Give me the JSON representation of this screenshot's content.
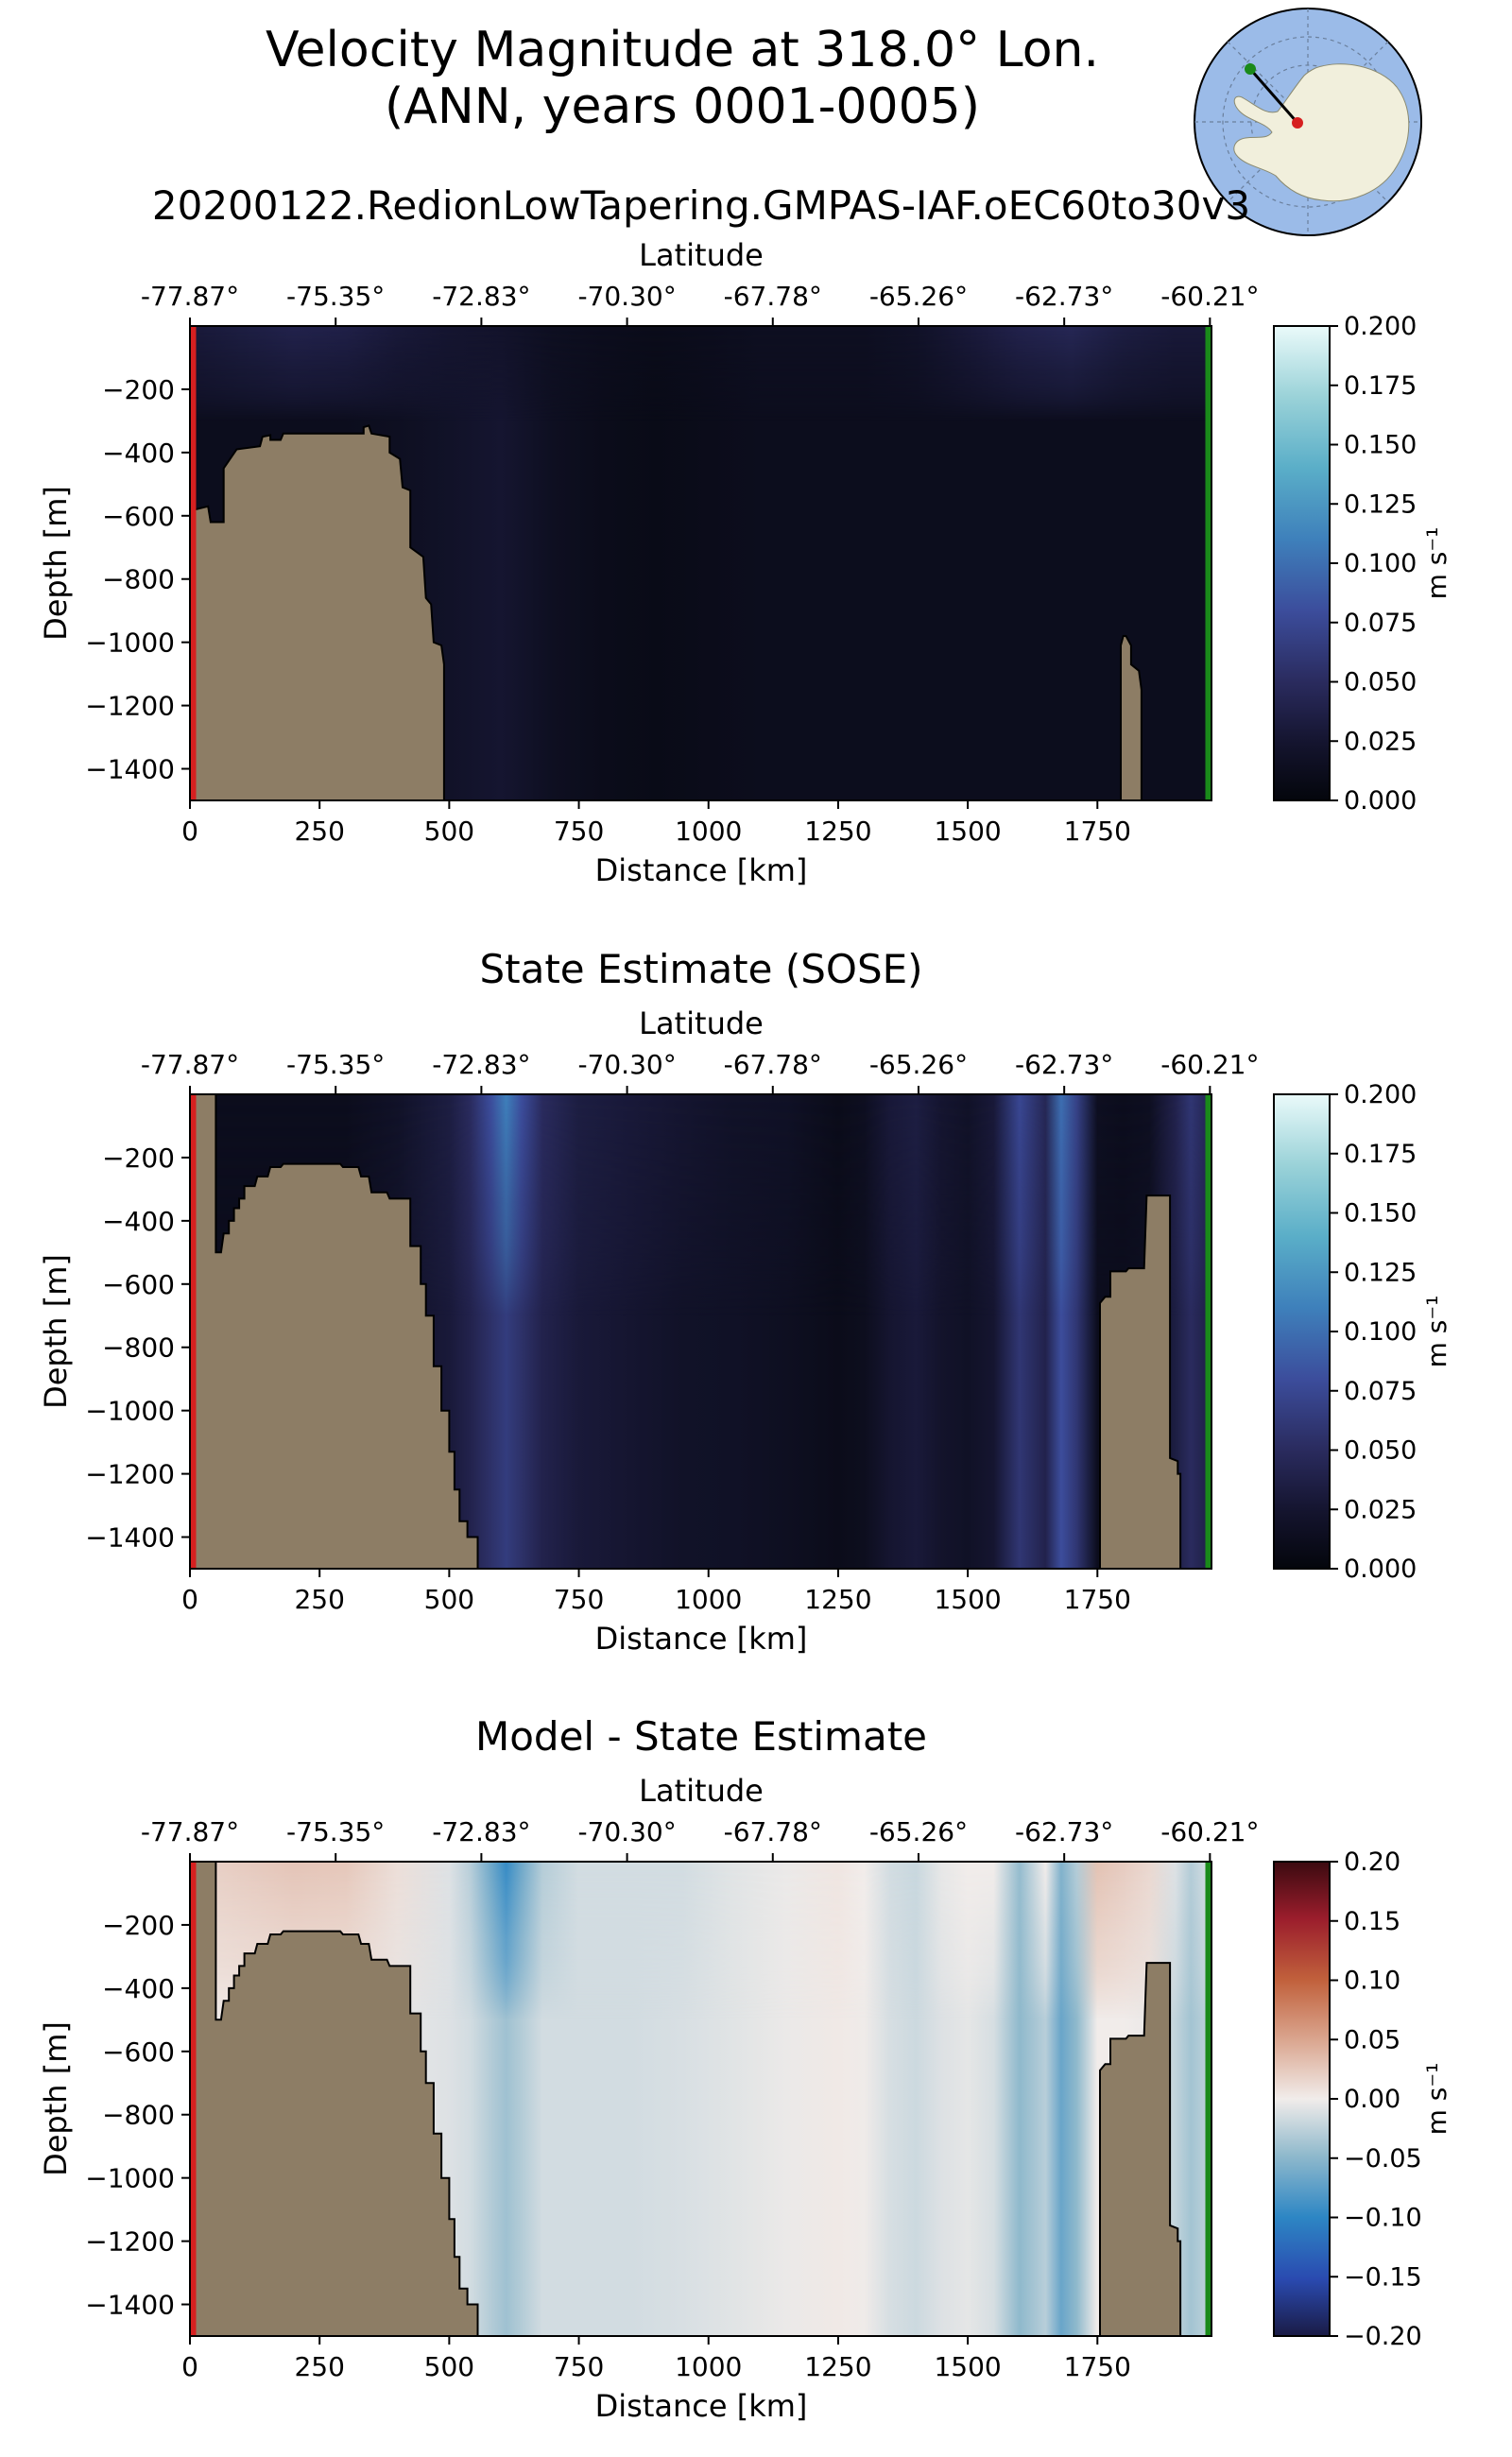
{
  "figure": {
    "title_line1": "Velocity Magnitude at 318.0° Lon.",
    "title_line2": "(ANN, years 0001-0005)"
  },
  "colors": {
    "land": "#8d7d65",
    "left_marker": "#d62020",
    "right_marker": "#1a8a1a",
    "inset_ocean": "#9bbbe8",
    "inset_land": "#f1efdc"
  },
  "inset": {
    "icon": "antarctica-map-icon"
  },
  "chart_data": [
    {
      "type": "heatmap",
      "panel_id": "model",
      "title": "20200122.RedionLowTapering.GMPAS-IAF.oEC60to30v3",
      "xlabel": "Distance [km]",
      "x_top_label": "Latitude",
      "ylabel": "Depth [m]",
      "xlim": [
        0,
        1970
      ],
      "ylim": [
        -1500,
        0
      ],
      "x_ticks": [
        0,
        250,
        500,
        750,
        1000,
        1250,
        1500,
        1750
      ],
      "x_tick_labels": [
        "0",
        "250",
        "500",
        "750",
        "1000",
        "1250",
        "1500",
        "1750"
      ],
      "y_ticks": [
        -200,
        -400,
        -600,
        -800,
        -1000,
        -1200,
        -1400
      ],
      "y_tick_labels": [
        "−200",
        "−400",
        "−600",
        "−800",
        "−1000",
        "−1200",
        "−1400"
      ],
      "top_ticks": [
        0,
        281,
        562,
        843,
        1124,
        1405,
        1686,
        1967
      ],
      "top_tick_labels": [
        "-77.87°",
        "-75.35°",
        "-72.83°",
        "-70.30°",
        "-67.78°",
        "-65.26°",
        "-62.73°",
        "-60.21°"
      ],
      "colorbar": {
        "label": "m s⁻¹",
        "range": [
          0,
          0.2
        ],
        "ticks": [
          0,
          0.025,
          0.05,
          0.075,
          0.1,
          0.125,
          0.15,
          0.175,
          0.2
        ],
        "tick_labels": [
          "0.000",
          "0.025",
          "0.050",
          "0.075",
          "0.100",
          "0.125",
          "0.150",
          "0.175",
          "0.200"
        ],
        "colormap": "ice"
      },
      "field": {
        "x": [
          0,
          100,
          200,
          300,
          400,
          500,
          600,
          700,
          800,
          900,
          1000,
          1100,
          1200,
          1300,
          1400,
          1500,
          1600,
          1700,
          1800,
          1900,
          1970
        ],
        "surface": [
          0.03,
          0.035,
          0.04,
          0.038,
          0.03,
          0.025,
          0.022,
          0.015,
          0.012,
          0.01,
          0.012,
          0.015,
          0.015,
          0.015,
          0.02,
          0.03,
          0.04,
          0.045,
          0.035,
          0.03,
          0.03
        ],
        "deep": [
          0.012,
          0.012,
          0.012,
          0.012,
          0.015,
          0.02,
          0.025,
          0.015,
          0.01,
          0.008,
          0.01,
          0.012,
          0.012,
          0.012,
          0.012,
          0.012,
          0.012,
          0.012,
          0.012,
          0.012,
          0.012
        ],
        "decay_depth": 300
      },
      "land": [
        {
          "x": [
            0,
            0,
            10,
            10,
            35,
            40,
            65,
            65,
            90,
            135,
            140,
            155,
            155,
            175,
            180,
            335,
            335,
            345,
            350,
            385,
            385,
            405,
            410,
            425,
            425,
            450,
            455,
            465,
            470,
            485,
            490,
            490
          ],
          "depth": [
            -1500,
            -680,
            -680,
            -580,
            -570,
            -620,
            -620,
            -450,
            -390,
            -380,
            -350,
            -345,
            -360,
            -360,
            -340,
            -340,
            -320,
            -315,
            -340,
            -350,
            -400,
            -420,
            -510,
            -520,
            -700,
            -730,
            -860,
            -880,
            -1000,
            -1010,
            -1070,
            -1500
          ]
        },
        {
          "x": [
            1795,
            1795,
            1800,
            1805,
            1815,
            1815,
            1830,
            1835,
            1835
          ],
          "depth": [
            -1500,
            -1010,
            -980,
            -980,
            -1010,
            -1070,
            -1090,
            -1150,
            -1500
          ]
        }
      ]
    },
    {
      "type": "heatmap",
      "panel_id": "sose",
      "title": "State Estimate (SOSE)",
      "xlabel": "Distance [km]",
      "x_top_label": "Latitude",
      "ylabel": "Depth [m]",
      "xlim": [
        0,
        1970
      ],
      "ylim": [
        -1500,
        0
      ],
      "x_ticks": [
        0,
        250,
        500,
        750,
        1000,
        1250,
        1500,
        1750
      ],
      "x_tick_labels": [
        "0",
        "250",
        "500",
        "750",
        "1000",
        "1250",
        "1500",
        "1750"
      ],
      "y_ticks": [
        -200,
        -400,
        -600,
        -800,
        -1000,
        -1200,
        -1400
      ],
      "y_tick_labels": [
        "−200",
        "−400",
        "−600",
        "−800",
        "−1000",
        "−1200",
        "−1400"
      ],
      "top_ticks": [
        0,
        281,
        562,
        843,
        1124,
        1405,
        1686,
        1967
      ],
      "top_tick_labels": [
        "-77.87°",
        "-75.35°",
        "-72.83°",
        "-70.30°",
        "-67.78°",
        "-65.26°",
        "-62.73°",
        "-60.21°"
      ],
      "colorbar": {
        "label": "m s⁻¹",
        "range": [
          0,
          0.2
        ],
        "ticks": [
          0,
          0.025,
          0.05,
          0.075,
          0.1,
          0.125,
          0.15,
          0.175,
          0.2
        ],
        "tick_labels": [
          "0.000",
          "0.025",
          "0.050",
          "0.075",
          "0.100",
          "0.125",
          "0.150",
          "0.175",
          "0.200"
        ],
        "colormap": "ice"
      },
      "field": {
        "x": [
          0,
          100,
          200,
          300,
          400,
          500,
          540,
          580,
          610,
          640,
          680,
          750,
          850,
          950,
          1050,
          1150,
          1250,
          1300,
          1350,
          1400,
          1450,
          1500,
          1550,
          1600,
          1650,
          1680,
          1710,
          1750,
          1800,
          1850,
          1900,
          1930,
          1970
        ],
        "surface": [
          0.012,
          0.012,
          0.012,
          0.012,
          0.02,
          0.035,
          0.05,
          0.08,
          0.11,
          0.08,
          0.05,
          0.035,
          0.03,
          0.025,
          0.02,
          0.018,
          0.01,
          0.015,
          0.03,
          0.035,
          0.025,
          0.02,
          0.03,
          0.075,
          0.045,
          0.1,
          0.07,
          0.015,
          0.012,
          0.015,
          0.04,
          0.06,
          0.04
        ],
        "deep": [
          0.012,
          0.012,
          0.012,
          0.012,
          0.02,
          0.03,
          0.04,
          0.055,
          0.065,
          0.055,
          0.04,
          0.03,
          0.025,
          0.02,
          0.018,
          0.015,
          0.01,
          0.013,
          0.025,
          0.03,
          0.022,
          0.018,
          0.025,
          0.06,
          0.04,
          0.08,
          0.06,
          0.012,
          0.012,
          0.015,
          0.035,
          0.05,
          0.035
        ],
        "decay_depth": 700
      },
      "land": [
        {
          "x": [
            0,
            0,
            50,
            50,
            60,
            65,
            75,
            75,
            85,
            85,
            95,
            95,
            105,
            105,
            125,
            130,
            150,
            155,
            175,
            180,
            290,
            295,
            325,
            330,
            345,
            350,
            380,
            385,
            425,
            425,
            445,
            445,
            455,
            455,
            470,
            470,
            485,
            485,
            500,
            500,
            510,
            510,
            520,
            520,
            535,
            535,
            555,
            555
          ],
          "depth": [
            -1500,
            0,
            0,
            -500,
            -500,
            -440,
            -440,
            -400,
            -400,
            -360,
            -360,
            -330,
            -330,
            -290,
            -290,
            -260,
            -260,
            -230,
            -230,
            -220,
            -220,
            -230,
            -230,
            -260,
            -260,
            -310,
            -310,
            -330,
            -330,
            -480,
            -480,
            -600,
            -600,
            -700,
            -700,
            -860,
            -860,
            -1000,
            -1000,
            -1130,
            -1130,
            -1250,
            -1250,
            -1350,
            -1350,
            -1400,
            -1400,
            -1500
          ]
        },
        {
          "x": [
            1755,
            1755,
            1765,
            1775,
            1775,
            1805,
            1810,
            1840,
            1845,
            1890,
            1890,
            1905,
            1905,
            1910,
            1910
          ],
          "depth": [
            -1500,
            -660,
            -640,
            -640,
            -560,
            -560,
            -550,
            -550,
            -320,
            -320,
            -1150,
            -1160,
            -1200,
            -1200,
            -1500
          ]
        }
      ]
    },
    {
      "type": "heatmap",
      "panel_id": "diff",
      "title": "Model - State Estimate",
      "xlabel": "Distance [km]",
      "x_top_label": "Latitude",
      "ylabel": "Depth [m]",
      "xlim": [
        0,
        1970
      ],
      "ylim": [
        -1500,
        0
      ],
      "x_ticks": [
        0,
        250,
        500,
        750,
        1000,
        1250,
        1500,
        1750
      ],
      "x_tick_labels": [
        "0",
        "250",
        "500",
        "750",
        "1000",
        "1250",
        "1500",
        "1750"
      ],
      "y_ticks": [
        -200,
        -400,
        -600,
        -800,
        -1000,
        -1200,
        -1400
      ],
      "y_tick_labels": [
        "−200",
        "−400",
        "−600",
        "−800",
        "−1000",
        "−1200",
        "−1400"
      ],
      "top_ticks": [
        0,
        281,
        562,
        843,
        1124,
        1405,
        1686,
        1967
      ],
      "top_tick_labels": [
        "-77.87°",
        "-75.35°",
        "-72.83°",
        "-70.30°",
        "-67.78°",
        "-65.26°",
        "-62.73°",
        "-60.21°"
      ],
      "colorbar": {
        "label": "m s⁻¹",
        "range": [
          -0.2,
          0.2
        ],
        "ticks": [
          -0.2,
          -0.15,
          -0.1,
          -0.05,
          0,
          0.05,
          0.1,
          0.15,
          0.2
        ],
        "tick_labels": [
          "−0.20",
          "−0.15",
          "−0.10",
          "−0.05",
          "0.00",
          "0.05",
          "0.10",
          "0.15",
          "0.20"
        ],
        "colormap": "balance"
      },
      "field": {
        "x": [
          0,
          100,
          200,
          300,
          400,
          500,
          540,
          580,
          610,
          640,
          680,
          750,
          850,
          950,
          1050,
          1150,
          1250,
          1300,
          1350,
          1400,
          1450,
          1500,
          1550,
          1600,
          1650,
          1680,
          1710,
          1750,
          1800,
          1850,
          1900,
          1930,
          1970
        ],
        "surface": [
          0.018,
          0.023,
          0.028,
          0.026,
          0.01,
          -0.01,
          -0.028,
          -0.065,
          -0.095,
          -0.065,
          -0.03,
          -0.015,
          -0.015,
          -0.015,
          -0.008,
          -0.003,
          0.005,
          0,
          -0.015,
          -0.02,
          -0.005,
          0,
          0,
          -0.045,
          0,
          -0.055,
          -0.03,
          0.03,
          0.023,
          0.015,
          -0.01,
          -0.03,
          -0.01
        ],
        "deep": [
          0,
          0,
          0,
          0,
          -0.005,
          -0.01,
          -0.015,
          -0.03,
          -0.04,
          -0.03,
          -0.015,
          -0.015,
          -0.015,
          -0.012,
          -0.008,
          -0.003,
          0.002,
          -0.001,
          -0.013,
          -0.018,
          -0.01,
          -0.006,
          -0.013,
          -0.048,
          -0.028,
          -0.068,
          -0.048,
          0,
          0,
          -0.003,
          -0.023,
          -0.038,
          -0.023
        ],
        "decay_depth": 500
      },
      "land": [
        {
          "x": [
            0,
            0,
            50,
            50,
            60,
            65,
            75,
            75,
            85,
            85,
            95,
            95,
            105,
            105,
            125,
            130,
            150,
            155,
            175,
            180,
            290,
            295,
            325,
            330,
            345,
            350,
            380,
            385,
            425,
            425,
            445,
            445,
            455,
            455,
            470,
            470,
            485,
            485,
            500,
            500,
            510,
            510,
            520,
            520,
            535,
            535,
            555,
            555
          ],
          "depth": [
            -1500,
            0,
            0,
            -500,
            -500,
            -440,
            -440,
            -400,
            -400,
            -360,
            -360,
            -330,
            -330,
            -290,
            -290,
            -260,
            -260,
            -230,
            -230,
            -220,
            -220,
            -230,
            -230,
            -260,
            -260,
            -310,
            -310,
            -330,
            -330,
            -480,
            -480,
            -600,
            -600,
            -700,
            -700,
            -860,
            -860,
            -1000,
            -1000,
            -1130,
            -1130,
            -1250,
            -1250,
            -1350,
            -1350,
            -1400,
            -1400,
            -1500
          ]
        },
        {
          "x": [
            1755,
            1755,
            1765,
            1775,
            1775,
            1805,
            1810,
            1840,
            1845,
            1890,
            1890,
            1905,
            1905,
            1910,
            1910
          ],
          "depth": [
            -1500,
            -660,
            -640,
            -640,
            -560,
            -560,
            -550,
            -550,
            -320,
            -320,
            -1150,
            -1160,
            -1200,
            -1200,
            -1500
          ]
        }
      ]
    }
  ]
}
